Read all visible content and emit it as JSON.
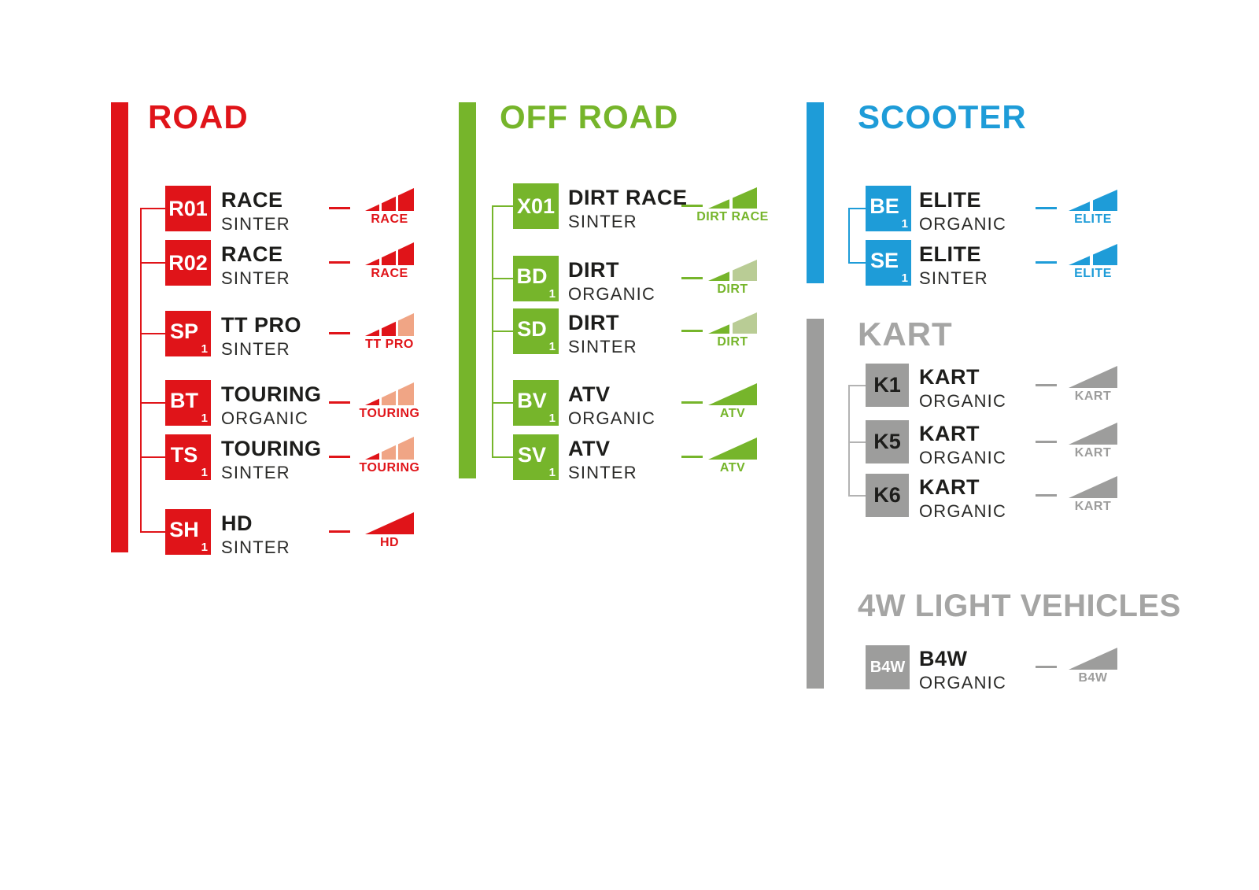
{
  "palette": {
    "red": "#e01419",
    "salmon": "#f0a585",
    "green": "#76b52b",
    "pale_green": "#b9cc95",
    "blue": "#1e9cd8",
    "gray": "#9d9d9c",
    "gray_title": "#a5a5a4",
    "text_dark": "#1d1d1b"
  },
  "sections": {
    "road": {
      "title": "ROAD",
      "items": [
        {
          "code": "R01",
          "code_sub": "",
          "name": "RACE",
          "material": "SINTER",
          "icon": {
            "type": "ramp3",
            "segments": [
              "red",
              "red",
              "red"
            ],
            "label": "RACE"
          }
        },
        {
          "code": "R02",
          "code_sub": "",
          "name": "RACE",
          "material": "SINTER",
          "icon": {
            "type": "ramp3",
            "segments": [
              "red",
              "red",
              "red"
            ],
            "label": "RACE"
          }
        },
        {
          "code": "SP",
          "code_sub": "1",
          "name": "TT PRO",
          "material": "SINTER",
          "icon": {
            "type": "ramp3",
            "segments": [
              "red",
              "red",
              "salmon"
            ],
            "label": "TT PRO"
          }
        },
        {
          "code": "BT",
          "code_sub": "1",
          "name": "TOURING",
          "material": "ORGANIC",
          "icon": {
            "type": "ramp3",
            "segments": [
              "red",
              "salmon",
              "salmon"
            ],
            "label": "TOURING"
          }
        },
        {
          "code": "TS",
          "code_sub": "1",
          "name": "TOURING",
          "material": "SINTER",
          "icon": {
            "type": "ramp3",
            "segments": [
              "red",
              "salmon",
              "salmon"
            ],
            "label": "TOURING"
          }
        },
        {
          "code": "SH",
          "code_sub": "1",
          "name": "HD",
          "material": "SINTER",
          "icon": {
            "type": "solid",
            "segments": [
              "red"
            ],
            "label": "HD"
          }
        }
      ]
    },
    "off_road": {
      "title": "OFF ROAD",
      "items": [
        {
          "code": "X01",
          "code_sub": "",
          "name": "DIRT RACE",
          "material": "SINTER",
          "icon": {
            "type": "ramp2",
            "segments": [
              "green",
              "green"
            ],
            "label": "DIRT RACE"
          }
        },
        {
          "code": "BD",
          "code_sub": "1",
          "name": "DIRT",
          "material": "ORGANIC",
          "icon": {
            "type": "ramp2",
            "segments": [
              "green",
              "pale_green"
            ],
            "label": "DIRT"
          }
        },
        {
          "code": "SD",
          "code_sub": "1",
          "name": "DIRT",
          "material": "SINTER",
          "icon": {
            "type": "ramp2",
            "segments": [
              "green",
              "pale_green"
            ],
            "label": "DIRT"
          }
        },
        {
          "code": "BV",
          "code_sub": "1",
          "name": "ATV",
          "material": "ORGANIC",
          "icon": {
            "type": "solid",
            "segments": [
              "green"
            ],
            "label": "ATV"
          }
        },
        {
          "code": "SV",
          "code_sub": "1",
          "name": "ATV",
          "material": "SINTER",
          "icon": {
            "type": "solid",
            "segments": [
              "green"
            ],
            "label": "ATV"
          }
        }
      ]
    },
    "scooter": {
      "title": "SCOOTER",
      "items": [
        {
          "code": "BE",
          "code_sub": "1",
          "name": "ELITE",
          "material": "ORGANIC",
          "icon": {
            "type": "ramp2",
            "segments": [
              "blue",
              "blue"
            ],
            "label": "ELITE"
          }
        },
        {
          "code": "SE",
          "code_sub": "1",
          "name": "ELITE",
          "material": "SINTER",
          "icon": {
            "type": "ramp2",
            "segments": [
              "blue",
              "blue"
            ],
            "label": "ELITE"
          }
        }
      ]
    },
    "kart": {
      "title": "KART",
      "items": [
        {
          "code": "K1",
          "code_sub": "",
          "name": "KART",
          "material": "ORGANIC",
          "icon": {
            "type": "solid",
            "segments": [
              "gray"
            ],
            "label": "KART"
          }
        },
        {
          "code": "K5",
          "code_sub": "",
          "name": "KART",
          "material": "ORGANIC",
          "icon": {
            "type": "solid",
            "segments": [
              "gray"
            ],
            "label": "KART"
          }
        },
        {
          "code": "K6",
          "code_sub": "",
          "name": "KART",
          "material": "ORGANIC",
          "icon": {
            "type": "solid",
            "segments": [
              "gray"
            ],
            "label": "KART"
          }
        }
      ]
    },
    "light_vehicles": {
      "title": "4W LIGHT VEHICLES",
      "items": [
        {
          "code": "B4W",
          "code_sub": "",
          "name": "B4W",
          "material": "ORGANIC",
          "icon": {
            "type": "solid",
            "segments": [
              "gray"
            ],
            "label": "B4W"
          }
        }
      ]
    }
  }
}
